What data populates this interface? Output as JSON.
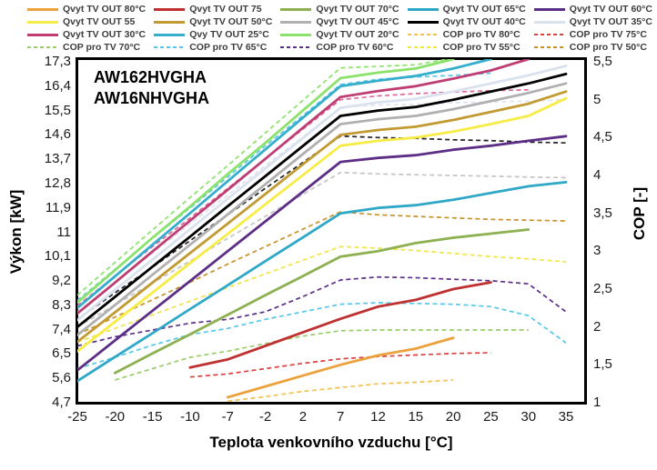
{
  "legend": {
    "items": [
      {
        "label": "Qvyt TV OUT 80°C",
        "color": "#EBA23C",
        "dash": false
      },
      {
        "label": "Qvyt TV OUT 75",
        "color": "#BF3030",
        "dash": false
      },
      {
        "label": "Qvyt TV OUT 70°C",
        "color": "#8DB050",
        "dash": false
      },
      {
        "label": "Qvyt TV OUT 65°C",
        "color": "#2FA8C8",
        "dash": false
      },
      {
        "label": "Qvyt TV OUT 60°C",
        "color": "#5C2E86",
        "dash": false
      },
      {
        "label": "Qvyt TV OUT 55",
        "color": "#F7EC45",
        "dash": false
      },
      {
        "label": "Qvyt TV OUT 50°C",
        "color": "#C29A32",
        "dash": false
      },
      {
        "label": "Qvyt TV OUT 45°C",
        "color": "#B0B0B0",
        "dash": false
      },
      {
        "label": "Qvyt TV OUT 40°C",
        "color": "#000000",
        "dash": false
      },
      {
        "label": "Qvyt TV OUT 35°C",
        "color": "#D9E2EE",
        "dash": false
      },
      {
        "label": "Qvyt TV OUT 30°C",
        "color": "#BE3E74",
        "dash": false
      },
      {
        "label": "Qvy TV OUT 25°C",
        "color": "#35AECC",
        "dash": false
      },
      {
        "label": "Qvyt TV OUT 20°C",
        "color": "#8BE26B",
        "dash": false
      },
      {
        "label": "COP pro TV 80°C",
        "color": "#F2C24E",
        "dash": true
      },
      {
        "label": "COP pro TV 75°C",
        "color": "#D94040",
        "dash": true
      },
      {
        "label": "COP pro TV 70°C",
        "color": "#9ACD6A",
        "dash": true
      },
      {
        "label": "COP pro TV 65°C",
        "color": "#55C8EA",
        "dash": true
      },
      {
        "label": "COP pro TV 60°C",
        "color": "#5C2E86",
        "dash": true
      },
      {
        "label": "COP pro TV 55°C",
        "color": "#F0E542",
        "dash": true
      },
      {
        "label": "COP pro TV 50°C",
        "color": "#C8922B",
        "dash": true
      }
    ]
  },
  "chart": {
    "title_line1": "AW162HVGHA",
    "title_line2": "AW16NHVGHA",
    "x_label": "Teplota venkovního vzduchu [°C]",
    "y_left_label": "Výkon [kW]",
    "y_right_label": "COP [-]",
    "x_tick_labels": [
      "-25",
      "-20",
      "-15",
      "-10",
      "-7",
      "-2",
      "2",
      "7",
      "12",
      "15",
      "20",
      "25",
      "30",
      "35"
    ],
    "y_left_tick_labels": [
      "17,3",
      "16,4",
      "15,5",
      "14,6",
      "13,7",
      "12,8",
      "11,9",
      "11",
      "10,1",
      "9,2",
      "8,3",
      "7,4",
      "6,5",
      "5,6",
      "4,7"
    ],
    "y_right_tick_labels": [
      "5,5",
      "5",
      "4,5",
      "4",
      "3,5",
      "3",
      "2,5",
      "2",
      "1,5",
      "1"
    ]
  },
  "chart_data": {
    "type": "line",
    "title": "AW162HVGHA / AW16NHVGHA",
    "xlabel": "Teplota venkovního vzduchu [°C]",
    "ylabel_left": "Výkon [kW]",
    "ylabel_right": "COP [-]",
    "x_categories": [
      -25,
      -20,
      -15,
      -10,
      -7,
      -2,
      2,
      7,
      12,
      15,
      20,
      25,
      30,
      35
    ],
    "x_spacing": "categorical-equal",
    "kw_axis_range": [
      4.7,
      17.3
    ],
    "cop_axis_range": [
      1,
      5.5
    ],
    "grid": false,
    "legend_position": "top",
    "series": [
      {
        "id": "qvyt-tv-out-20",
        "label": "Qvyt TV OUT 20°C",
        "axis": "kw",
        "style": "solid",
        "color": "#8BE26B",
        "start_index": 0,
        "values": [
          8.4,
          9.6,
          10.8,
          11.95,
          13.15,
          14.3,
          15.5,
          16.7,
          16.9,
          17.05,
          17.4
        ]
      },
      {
        "id": "qvyt-tv-out-25",
        "label": "Qvy TV OUT 25°C",
        "axis": "kw",
        "style": "solid",
        "color": "#35AECC",
        "start_index": 0,
        "values": [
          8.2,
          9.37,
          10.54,
          11.71,
          12.89,
          14.06,
          15.23,
          16.4,
          16.6,
          16.78,
          17.05,
          17.4
        ]
      },
      {
        "id": "qvyt-tv-out-30",
        "label": "Qvyt TV OUT 30°C",
        "axis": "kw",
        "style": "solid",
        "color": "#BE3E74",
        "start_index": 0,
        "values": [
          8.0,
          9.14,
          10.29,
          11.43,
          12.57,
          13.71,
          14.86,
          16.0,
          16.22,
          16.4,
          16.68,
          16.98,
          17.4
        ]
      },
      {
        "id": "qvyt-tv-out-35",
        "label": "Qvyt TV OUT 35°C",
        "axis": "kw",
        "style": "solid",
        "color": "#D9E2EE",
        "start_index": 0,
        "values": [
          7.75,
          8.87,
          9.99,
          11.11,
          12.24,
          13.36,
          14.48,
          15.6,
          15.8,
          15.93,
          16.2,
          16.5,
          16.8,
          17.15
        ]
      },
      {
        "id": "qvyt-tv-out-40",
        "label": "Qvyt TV OUT 40°C",
        "axis": "kw",
        "style": "solid",
        "color": "#000000",
        "start_index": 0,
        "values": [
          7.5,
          8.61,
          9.73,
          10.84,
          11.96,
          13.07,
          14.19,
          15.3,
          15.5,
          15.63,
          15.9,
          16.2,
          16.5,
          16.85
        ]
      },
      {
        "id": "qvyt-tv-out-45",
        "label": "Qvyt TV OUT 45°C",
        "axis": "kw",
        "style": "solid",
        "color": "#B0B0B0",
        "start_index": 0,
        "values": [
          7.2,
          8.31,
          9.43,
          10.54,
          11.66,
          12.77,
          13.89,
          15.0,
          15.18,
          15.3,
          15.55,
          15.85,
          16.15,
          16.5
        ]
      },
      {
        "id": "qvyt-tv-out-50",
        "label": "Qvyt TV OUT 50°C",
        "axis": "kw",
        "style": "solid",
        "color": "#C29A32",
        "start_index": 0,
        "values": [
          6.95,
          8.04,
          9.14,
          10.23,
          11.32,
          12.41,
          13.51,
          14.6,
          14.78,
          14.9,
          15.15,
          15.45,
          15.75,
          16.2
        ]
      },
      {
        "id": "qvyt-tv-out-55",
        "label": "Qvyt TV OUT 55",
        "axis": "kw",
        "style": "solid",
        "color": "#F7EC45",
        "start_index": 0,
        "values": [
          6.6,
          7.69,
          8.77,
          9.86,
          10.94,
          12.03,
          13.11,
          14.2,
          14.38,
          14.5,
          14.72,
          15.0,
          15.3,
          15.95
        ]
      },
      {
        "id": "qvyt-tv-out-60",
        "label": "Qvyt TV OUT 60°C",
        "axis": "kw",
        "style": "solid",
        "color": "#5C2E86",
        "start_index": 0,
        "values": [
          5.9,
          7.0,
          8.1,
          9.2,
          10.3,
          11.4,
          12.5,
          13.6,
          13.75,
          13.85,
          14.05,
          14.2,
          14.38,
          14.55
        ]
      },
      {
        "id": "qvyt-tv-out-65",
        "label": "Qvyt TV OUT 65°C",
        "axis": "kw",
        "style": "solid",
        "color": "#2FA8C8",
        "start_index": 0,
        "values": [
          5.5,
          6.39,
          7.27,
          8.16,
          9.04,
          9.93,
          10.81,
          11.7,
          11.9,
          12.0,
          12.2,
          12.45,
          12.7,
          12.85
        ]
      },
      {
        "id": "qvyt-tv-out-70",
        "label": "Qvyt TV OUT 70°C",
        "axis": "kw",
        "style": "solid",
        "color": "#8DB050",
        "start_index": 1,
        "values": [
          5.8,
          6.52,
          7.23,
          7.95,
          8.67,
          9.38,
          10.1,
          10.3,
          10.6,
          10.8,
          10.95,
          11.1
        ]
      },
      {
        "id": "qvyt-tv-out-75",
        "label": "Qvyt TV OUT 75",
        "axis": "kw",
        "style": "solid",
        "color": "#BF3030",
        "start_index": 3,
        "values": [
          6.0,
          6.3,
          6.8,
          7.3,
          7.8,
          8.25,
          8.5,
          8.9,
          9.15
        ]
      },
      {
        "id": "qvyt-tv-out-80",
        "label": "Qvyt TV OUT 80°C",
        "axis": "kw",
        "style": "solid",
        "color": "#EBA23C",
        "start_index": 4,
        "values": [
          4.9,
          5.3,
          5.7,
          6.1,
          6.45,
          6.7,
          7.1
        ]
      },
      {
        "id": "cop-tv-20",
        "label": "",
        "axis": "cop",
        "style": "dashed",
        "color": "#8BE26B",
        "start_index": 0,
        "values": [
          2.42,
          2.85,
          3.28,
          3.71,
          4.13,
          4.56,
          4.99,
          5.42,
          5.44,
          5.46,
          5.55
        ]
      },
      {
        "id": "cop-tv-25",
        "label": "",
        "axis": "cop",
        "style": "dashed",
        "color": "#5BC6E4",
        "start_index": 0,
        "values": [
          2.35,
          2.76,
          3.17,
          3.57,
          3.98,
          4.39,
          4.79,
          5.2,
          5.27,
          5.3,
          5.32,
          5.35
        ]
      },
      {
        "id": "cop-tv-30",
        "label": "",
        "axis": "cop",
        "style": "dashed",
        "color": "#E0679A",
        "start_index": 0,
        "values": [
          2.28,
          2.67,
          3.06,
          3.44,
          3.83,
          4.22,
          4.61,
          5.0,
          5.05,
          5.08,
          5.1,
          5.12,
          5.13
        ]
      },
      {
        "id": "cop-tv-35",
        "label": "",
        "axis": "cop",
        "style": "dashed",
        "color": "#DDE4EC",
        "start_index": 0,
        "values": [
          2.2,
          2.59,
          2.97,
          3.36,
          3.74,
          4.13,
          4.51,
          4.9,
          4.93,
          4.94,
          4.96,
          4.97,
          4.98,
          5.0
        ]
      },
      {
        "id": "cop-tv-40",
        "label": "",
        "axis": "cop",
        "style": "dashed",
        "color": "#222222",
        "start_index": 0,
        "values": [
          2.1,
          2.45,
          2.79,
          3.14,
          3.48,
          3.83,
          4.17,
          4.52,
          4.5,
          4.49,
          4.47,
          4.46,
          4.44,
          4.43
        ]
      },
      {
        "id": "cop-tv-45",
        "label": "",
        "axis": "cop",
        "style": "dashed",
        "color": "#C4C4C4",
        "start_index": 0,
        "values": [
          2.0,
          2.29,
          2.58,
          2.87,
          3.17,
          3.46,
          3.75,
          4.04,
          4.02,
          4.01,
          4.0,
          3.99,
          3.98,
          3.97
        ]
      },
      {
        "id": "cop-tv-50",
        "label": "COP pro TV 50°C",
        "axis": "cop",
        "style": "dashed",
        "color": "#C8922B",
        "start_index": 0,
        "values": [
          1.9,
          2.13,
          2.36,
          2.59,
          2.83,
          3.06,
          3.29,
          3.52,
          3.48,
          3.46,
          3.44,
          3.42,
          3.41,
          3.4
        ]
      },
      {
        "id": "cop-tv-55",
        "label": "COP pro TV 55°C",
        "axis": "cop",
        "style": "dashed",
        "color": "#F0E542",
        "start_index": 0,
        "values": [
          1.8,
          1.98,
          2.16,
          2.34,
          2.52,
          2.7,
          2.88,
          3.06,
          3.04,
          3.01,
          2.97,
          2.93,
          2.9,
          2.86
        ]
      },
      {
        "id": "cop-tv-60",
        "label": "COP pro TV 60°C",
        "axis": "cop",
        "style": "dashed",
        "color": "#5C2E86",
        "start_index": 0,
        "values": [
          1.75,
          1.87,
          1.96,
          2.05,
          2.1,
          2.2,
          2.4,
          2.62,
          2.66,
          2.65,
          2.63,
          2.61,
          2.57,
          2.2
        ]
      },
      {
        "id": "cop-tv-65",
        "label": "COP pro TV 65°C",
        "axis": "cop",
        "style": "dashed",
        "color": "#55C8EA",
        "start_index": 0,
        "values": [
          1.45,
          1.6,
          1.76,
          1.9,
          1.98,
          2.1,
          2.2,
          2.3,
          2.32,
          2.31,
          2.3,
          2.27,
          2.15,
          1.79
        ]
      },
      {
        "id": "cop-tv-70",
        "label": "COP pro TV 70°C",
        "axis": "cop",
        "style": "dashed",
        "color": "#9ACD6A",
        "start_index": 1,
        "values": [
          1.3,
          1.45,
          1.6,
          1.68,
          1.78,
          1.88,
          1.95,
          1.96,
          1.96,
          1.96,
          1.96,
          1.96
        ]
      },
      {
        "id": "cop-tv-75",
        "label": "COP pro TV 75°C",
        "axis": "cop",
        "style": "dashed",
        "color": "#D94040",
        "start_index": 3,
        "values": [
          1.34,
          1.38,
          1.45,
          1.52,
          1.58,
          1.61,
          1.63,
          1.65,
          1.66
        ]
      },
      {
        "id": "cop-tv-80",
        "label": "COP pro TV 80°C",
        "axis": "cop",
        "style": "dashed",
        "color": "#F2C24E",
        "start_index": 4,
        "values": [
          1.02,
          1.08,
          1.15,
          1.2,
          1.25,
          1.27,
          1.3
        ]
      }
    ]
  }
}
